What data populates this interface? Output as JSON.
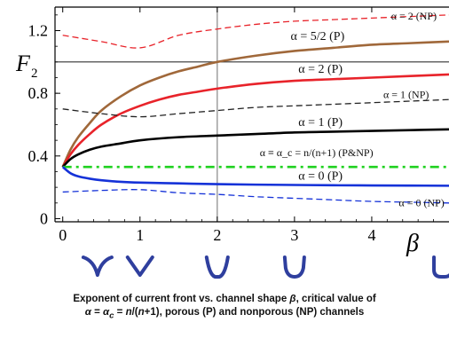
{
  "chart_data": {
    "type": "line",
    "ylabel_main": "F",
    "ylabel_sub": "2",
    "xlabel": "β",
    "xlim": [
      -0.1,
      5.0
    ],
    "ylim": [
      -0.02,
      1.35
    ],
    "x_ticks": [
      0,
      1,
      2,
      3,
      4
    ],
    "x_tick_labels": [
      "0",
      "1",
      "2",
      "3",
      "4"
    ],
    "y_ticks": [
      0,
      0.4,
      0.8,
      1.2
    ],
    "y_tick_labels": [
      "0",
      "0.4",
      "0.8",
      "1.2"
    ],
    "reference_lines": [
      {
        "orientation": "horizontal",
        "value": 1.0,
        "color": "#333333"
      },
      {
        "orientation": "vertical",
        "value": 2.0,
        "color": "#888888"
      }
    ],
    "series": [
      {
        "name": "α = 2 (NP)",
        "color": "#e8232a",
        "dash": "dashed",
        "label_pos": [
          4.25,
          1.27
        ],
        "x": [
          0,
          0.5,
          1.0,
          1.5,
          2.0,
          2.5,
          3.0,
          3.5,
          4.0,
          4.5,
          5.0
        ],
        "y": [
          1.17,
          1.13,
          1.09,
          1.17,
          1.21,
          1.24,
          1.26,
          1.27,
          1.28,
          1.29,
          1.3
        ]
      },
      {
        "name": "α = 5/2 (P)",
        "color": "#a0683a",
        "dash": "solid",
        "label_pos": [
          2.95,
          1.14
        ],
        "x": [
          0,
          0.1,
          0.2,
          0.35,
          0.5,
          0.75,
          1.0,
          1.25,
          1.5,
          1.75,
          2.0,
          2.5,
          3.0,
          3.5,
          4.0,
          4.5,
          5.0
        ],
        "y": [
          0.33,
          0.44,
          0.52,
          0.61,
          0.69,
          0.78,
          0.85,
          0.9,
          0.94,
          0.97,
          1.0,
          1.04,
          1.07,
          1.09,
          1.11,
          1.12,
          1.13
        ]
      },
      {
        "name": "α = 2 (P)",
        "color": "#e8232a",
        "dash": "solid",
        "label_pos": [
          3.05,
          0.93
        ],
        "x": [
          0,
          0.1,
          0.2,
          0.35,
          0.5,
          0.75,
          1.0,
          1.25,
          1.5,
          1.75,
          2.0,
          2.5,
          3.0,
          3.5,
          4.0,
          4.5,
          5.0
        ],
        "y": [
          0.33,
          0.41,
          0.47,
          0.54,
          0.6,
          0.67,
          0.72,
          0.76,
          0.79,
          0.81,
          0.83,
          0.86,
          0.88,
          0.89,
          0.9,
          0.91,
          0.92
        ]
      },
      {
        "name": "α = 1 (NP)",
        "color": "#222222",
        "dash": "dashed",
        "label_pos": [
          4.15,
          0.77
        ],
        "x": [
          0,
          0.5,
          1.0,
          1.5,
          2.0,
          2.5,
          3.0,
          3.5,
          4.0,
          4.5,
          5.0
        ],
        "y": [
          0.7,
          0.67,
          0.65,
          0.67,
          0.69,
          0.71,
          0.72,
          0.73,
          0.74,
          0.75,
          0.76
        ]
      },
      {
        "name": "α = 1 (P)",
        "color": "#000000",
        "dash": "solid",
        "label_pos": [
          3.05,
          0.59
        ],
        "x": [
          0,
          0.1,
          0.2,
          0.35,
          0.5,
          0.75,
          1.0,
          1.5,
          2.0,
          2.5,
          3.0,
          3.5,
          4.0,
          4.5,
          5.0
        ],
        "y": [
          0.33,
          0.38,
          0.41,
          0.44,
          0.46,
          0.48,
          0.5,
          0.52,
          0.53,
          0.54,
          0.55,
          0.555,
          0.56,
          0.565,
          0.57
        ]
      },
      {
        "name": "α ≡ α_c = n/(n+1) (P&NP)",
        "color": "#1fd11f",
        "dash": "dashdot",
        "label_pos": [
          2.55,
          0.4
        ],
        "x": [
          0,
          5.0
        ],
        "y": [
          0.33,
          0.33
        ]
      },
      {
        "name": "α = 0 (P)",
        "color": "#1532d8",
        "dash": "solid",
        "label_pos": [
          3.05,
          0.25
        ],
        "x": [
          0,
          0.1,
          0.2,
          0.35,
          0.5,
          0.75,
          1.0,
          1.5,
          2.0,
          2.5,
          3.0,
          3.5,
          4.0,
          4.5,
          5.0
        ],
        "y": [
          0.33,
          0.29,
          0.27,
          0.255,
          0.245,
          0.235,
          0.23,
          0.225,
          0.22,
          0.217,
          0.215,
          0.213,
          0.212,
          0.211,
          0.21
        ]
      },
      {
        "name": "α = 0 (NP)",
        "color": "#1532d8",
        "dash": "dashed",
        "label_pos": [
          4.35,
          0.08
        ],
        "x": [
          0,
          0.5,
          1.0,
          1.5,
          2.0,
          2.5,
          3.0,
          3.5,
          4.0,
          4.5,
          5.0
        ],
        "y": [
          0.17,
          0.18,
          0.185,
          0.165,
          0.155,
          0.14,
          0.13,
          0.12,
          0.11,
          0.105,
          0.1
        ]
      }
    ],
    "channel_shapes": [
      {
        "beta": 0.45,
        "shape": "cusp"
      },
      {
        "beta": 1.0,
        "shape": "v"
      },
      {
        "beta": 2.0,
        "shape": "rounded-v"
      },
      {
        "beta": 3.0,
        "shape": "u"
      },
      {
        "beta": 4.92,
        "shape": "square-u"
      }
    ],
    "shape_color": "#2f3f9e"
  },
  "caption": {
    "line1_pre": "Exponent of current front vs. channel shape ",
    "line1_sym": "β",
    "line1_post": ", critical value of",
    "line2_a": "α",
    "line2_b": " = ",
    "line2_c": "α",
    "line2_d": "c",
    "line2_e": " = ",
    "line2_f": "n",
    "line2_g": "/(",
    "line2_h": "n",
    "line2_i": "+1), porous (P) and nonporous (NP) channels"
  }
}
